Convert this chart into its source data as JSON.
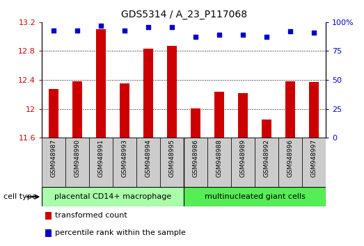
{
  "title": "GDS5314 / A_23_P117068",
  "samples": [
    "GSM948987",
    "GSM948990",
    "GSM948991",
    "GSM948993",
    "GSM948994",
    "GSM948995",
    "GSM948986",
    "GSM948988",
    "GSM948989",
    "GSM948992",
    "GSM948996",
    "GSM948997"
  ],
  "transformed_counts": [
    12.28,
    12.38,
    13.1,
    12.35,
    12.83,
    12.87,
    12.01,
    12.24,
    12.22,
    11.85,
    12.38,
    12.37
  ],
  "percentile_ranks": [
    93,
    93,
    97,
    93,
    96,
    96,
    87,
    89,
    89,
    87,
    92,
    91
  ],
  "ylim_left": [
    11.6,
    13.2
  ],
  "ylim_right": [
    0,
    100
  ],
  "yticks_left": [
    11.6,
    12.0,
    12.4,
    12.8,
    13.2
  ],
  "yticks_right": [
    0,
    25,
    50,
    75,
    100
  ],
  "ytick_labels_left": [
    "11.6",
    "12",
    "12.4",
    "12.8",
    "13.2"
  ],
  "ytick_labels_right": [
    "0",
    "25",
    "50",
    "75",
    "100%"
  ],
  "groups": [
    {
      "label": "placental CD14+ macrophage",
      "start": 0,
      "end": 6,
      "color": "#aaffaa"
    },
    {
      "label": "multinucleated giant cells",
      "start": 6,
      "end": 12,
      "color": "#55ee55"
    }
  ],
  "bar_color": "#cc0000",
  "dot_color": "#0000cc",
  "tick_label_color_left": "#cc0000",
  "tick_label_color_right": "#0000cc",
  "cell_type_label": "cell type",
  "legend_items": [
    {
      "label": "transformed count",
      "color": "#cc0000"
    },
    {
      "label": "percentile rank within the sample",
      "color": "#0000cc"
    }
  ],
  "bar_bottom": 11.6,
  "grid_yticks": [
    12.0,
    12.4,
    12.8
  ],
  "sample_label_bg": "#cccccc",
  "group_boundary": 5.5
}
